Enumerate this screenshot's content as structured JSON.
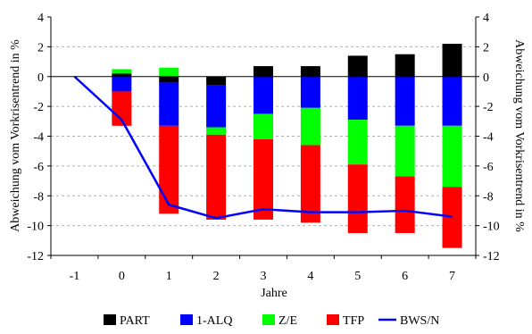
{
  "chart_data": {
    "type": "bar",
    "stacked": true,
    "categories": [
      "-1",
      "0",
      "1",
      "2",
      "3",
      "4",
      "5",
      "6",
      "7"
    ],
    "xlabel": "Jahre",
    "ylabel_left": "Abweichung vom Vorkrisentrend in %",
    "ylabel_right": "Abweichung vom Vorkrisentrend in %",
    "ylim": [
      -12,
      4
    ],
    "yticks": [
      4,
      2,
      0,
      -2,
      -4,
      -6,
      -8,
      -10,
      -12
    ],
    "ytick_labels": [
      "4",
      "2",
      "0",
      "-2",
      "-4",
      "-6",
      "-8",
      "-10",
      "-12"
    ],
    "grid": "horizontal dashed",
    "legend_position": "bottom",
    "series": [
      {
        "name": "PART",
        "kind": "bar",
        "color": "#000000",
        "values": [
          0,
          0.2,
          -0.4,
          -0.6,
          0.7,
          0.7,
          1.4,
          1.5,
          2.2
        ]
      },
      {
        "name": "1-ALQ",
        "kind": "bar",
        "color": "#0000ff",
        "values": [
          0,
          -1.0,
          -2.9,
          -2.8,
          -2.5,
          -2.1,
          -2.9,
          -3.3,
          -3.3
        ]
      },
      {
        "name": "Z/E",
        "kind": "bar",
        "color": "#00ff00",
        "values": [
          0,
          0.3,
          0.6,
          -0.5,
          -1.7,
          -2.5,
          -3.0,
          -3.4,
          -4.1
        ]
      },
      {
        "name": "TFP",
        "kind": "bar",
        "color": "#ff0000",
        "values": [
          0,
          -2.3,
          -5.9,
          -5.7,
          -5.4,
          -5.2,
          -4.6,
          -3.8,
          -4.1
        ]
      },
      {
        "name": "BWS/N",
        "kind": "line",
        "color": "#0000ff",
        "values": [
          0,
          -2.9,
          -8.6,
          -9.5,
          -8.9,
          -9.1,
          -9.1,
          -9.0,
          -9.4
        ]
      }
    ]
  }
}
